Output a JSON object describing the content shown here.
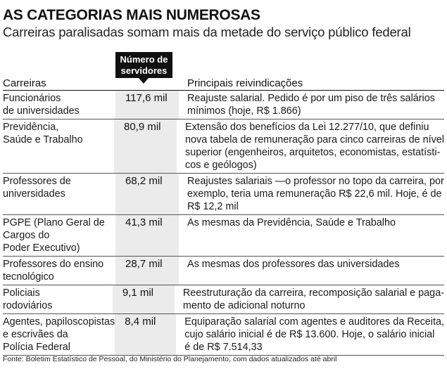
{
  "title": "AS CATEGORIAS MAIS NUMEROSAS",
  "subtitle": "Carreiras paralisadas somam mais da metade do serviço público federal",
  "badge": {
    "line1": "Número de",
    "line2": "servidores"
  },
  "headers": {
    "carreiras": "Carreiras",
    "reivindicacoes": "Principais reivindicações"
  },
  "rows": [
    {
      "carreira": [
        "Funcionários",
        "de universidades"
      ],
      "servidores": "117,6 mil",
      "reivindicacao": [
        "Reajuste salarial. Pedido é por um piso de três salários",
        "mínimos (hoje, R$ 1.866)"
      ]
    },
    {
      "carreira": [
        "Previdência,",
        "Saúde e Trabalho"
      ],
      "servidores": "80,9 mil",
      "reivindicacao": [
        "Extensão dos benefícios da Lei 12.277/10, que definiu",
        "nova tabela de remuneração para cinco carreiras de nível",
        "superior (engenheiros, arquitetos, economistas, estatísti-",
        "cos e geólogos)"
      ]
    },
    {
      "carreira": [
        "Professores de",
        "universidades"
      ],
      "servidores": "68,2 mil",
      "reivindicacao": [
        "Reajustes salariais —o professor no topo da carreira, por",
        "exemplo, teria uma remuneração R$ 22,6 mil. Hoje, é de",
        "R$ 12,2 mil"
      ]
    },
    {
      "carreira": [
        "PGPE (Plano Geral de",
        "Cargos do",
        "Poder Executivo)"
      ],
      "servidores": "41,3 mil",
      "reivindicacao": [
        "As mesmas da Previdência, Saúde e Trabalho"
      ]
    },
    {
      "carreira": [
        "Professores do ensino",
        "tecnológico"
      ],
      "servidores": "28,7 mil",
      "reivindicacao": [
        "As mesmas dos professores das universidades"
      ]
    },
    {
      "carreira": [
        "Policiais",
        "rodoviários"
      ],
      "servidores": "9,1 mil",
      "reivindicacao": [
        "Reestruturação da carreira, recomposição salarial e paga-",
        "mento de adicional noturno"
      ]
    },
    {
      "carreira": [
        "Agentes, papiloscopistas",
        "e escrivães da",
        "Polícia Federal"
      ],
      "servidores": "8,4 mil",
      "reivindicacao": [
        "Equiparação salarial com agentes e auditores da Receita,",
        "cujo salário inicial é de R$ 13.600. Hoje, o salário inicial",
        "é de R$ 7.514,33"
      ]
    }
  ],
  "source": "Fonte: Boletim Estatístico de Pessoal, do Ministério do Planejamento, com dados atualizados até abril"
}
